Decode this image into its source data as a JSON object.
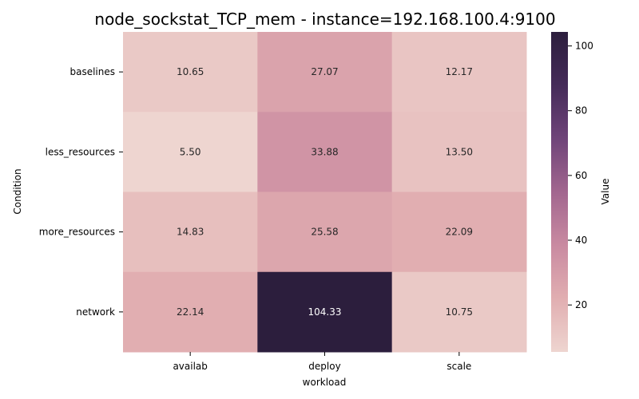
{
  "chart_data": {
    "type": "heatmap",
    "title": "node_sockstat_TCP_mem - instance=192.168.100.4:9100",
    "xlabel": "workload",
    "ylabel": "Condition",
    "x_categories": [
      "availab",
      "deploy",
      "scale"
    ],
    "y_categories": [
      "baselines",
      "less_resources",
      "more_resources",
      "network"
    ],
    "values": [
      [
        10.65,
        27.07,
        12.17
      ],
      [
        5.5,
        33.88,
        13.5
      ],
      [
        14.83,
        25.58,
        22.09
      ],
      [
        22.14,
        104.33,
        10.75
      ]
    ],
    "value_labels": [
      [
        "10.65",
        "27.07",
        "12.17"
      ],
      [
        "5.50",
        "33.88",
        "13.50"
      ],
      [
        "14.83",
        "25.58",
        "22.09"
      ],
      [
        "22.14",
        "104.33",
        "10.75"
      ]
    ],
    "colorbar": {
      "label": "Value",
      "min": 5.5,
      "max": 104.33,
      "ticks": [
        20,
        40,
        60,
        80,
        100
      ],
      "colors": [
        "#eed5d0",
        "#e1aeb1",
        "#c98aa1",
        "#a2668f",
        "#6f4479",
        "#452b59",
        "#2c1e3d"
      ]
    },
    "grid": false
  }
}
